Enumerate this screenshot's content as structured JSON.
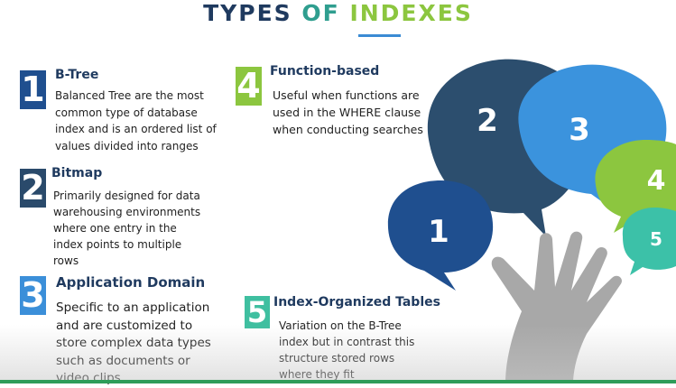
{
  "title": {
    "word1": "TYPES",
    "word2": "OF",
    "word3": "INDEXES"
  },
  "items": [
    {
      "number": "1",
      "heading": "B-Tree",
      "description": "Balanced Tree are the most common type of database index and is an ordered list of values divided into ranges",
      "color": "#1f4f8f"
    },
    {
      "number": "2",
      "heading": "Bitmap",
      "description": "Primarily designed for data warehousing environments where one entry in the index points to multiple rows",
      "color": "#2a4a6b"
    },
    {
      "number": "3",
      "heading": "Application Domain",
      "description": "Specific to an application and are customized to store complex data types such as documents or video clips",
      "color": "#3b8fd9"
    },
    {
      "number": "4",
      "heading": "Function-based",
      "description": "Useful when functions are used in the WHERE clause when conducting searches",
      "color": "#8cc63f"
    },
    {
      "number": "5",
      "heading": "Index-Organized Tables",
      "description": "Variation on the B-Tree index but in contrast this structure stored rows where they fit",
      "color": "#3fbfa0"
    }
  ],
  "bubbles": [
    {
      "label": "1",
      "color": "#1f4f8f"
    },
    {
      "label": "2",
      "color": "#2c4e6e"
    },
    {
      "label": "3",
      "color": "#3b93dd"
    },
    {
      "label": "4",
      "color": "#8cc63f"
    },
    {
      "label": "5",
      "color": "#3cc1a8"
    }
  ],
  "colors": {
    "footer_bar": "#2e9d5a"
  }
}
